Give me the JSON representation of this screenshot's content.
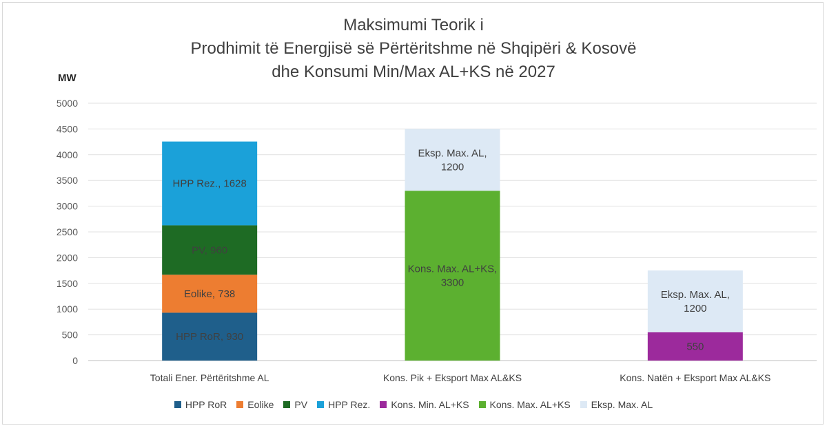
{
  "chart_data": {
    "type": "bar",
    "stacked": true,
    "title_lines": [
      "Maksimumi Teorik i",
      "Prodhimit të Energjisë së Përtëritshme në Shqipëri & Kosovë",
      "dhe Konsumi Min/Max AL+KS në 2027"
    ],
    "ylabel": "MW",
    "ylim": [
      0,
      5000
    ],
    "yticks": [
      0,
      500,
      1000,
      1500,
      2000,
      2500,
      3000,
      3500,
      4000,
      4500,
      5000
    ],
    "grid": true,
    "legend_position": "bottom",
    "categories": [
      "Totali Ener. Përtëritshme AL",
      "Kons. Pik + Eksport Max AL&KS",
      "Kons. Natën + Eksport Max AL&KS"
    ],
    "series": [
      {
        "name": "HPP RoR",
        "color": "#1f5f8b",
        "values": [
          930,
          0,
          0
        ],
        "labels": [
          "HPP RoR, 930",
          "",
          ""
        ]
      },
      {
        "name": "Eolike",
        "color": "#ed7d31",
        "values": [
          738,
          0,
          0
        ],
        "labels": [
          "Eolike, 738",
          "",
          ""
        ]
      },
      {
        "name": "PV",
        "color": "#1e6b24",
        "values": [
          960,
          0,
          0
        ],
        "labels": [
          "PV, 960",
          "",
          ""
        ]
      },
      {
        "name": "HPP Rez.",
        "color": "#1ba1d9",
        "values": [
          1628,
          0,
          0
        ],
        "labels": [
          "HPP Rez., 1628",
          "",
          ""
        ]
      },
      {
        "name": "Kons. Min. AL+KS",
        "color": "#9c2a9c",
        "values": [
          0,
          0,
          550
        ],
        "labels": [
          "",
          "",
          "550"
        ]
      },
      {
        "name": "Kons. Max. AL+KS",
        "color": "#5cb030",
        "values": [
          0,
          3300,
          0
        ],
        "labels": [
          "",
          "Kons. Max. AL+KS,|3300",
          ""
        ]
      },
      {
        "name": "Eksp. Max. AL",
        "color": "#dde9f5",
        "values": [
          0,
          1200,
          1200
        ],
        "labels": [
          "",
          "Eksp. Max. AL,|1200",
          "Eksp. Max. AL,|1200"
        ]
      }
    ]
  }
}
